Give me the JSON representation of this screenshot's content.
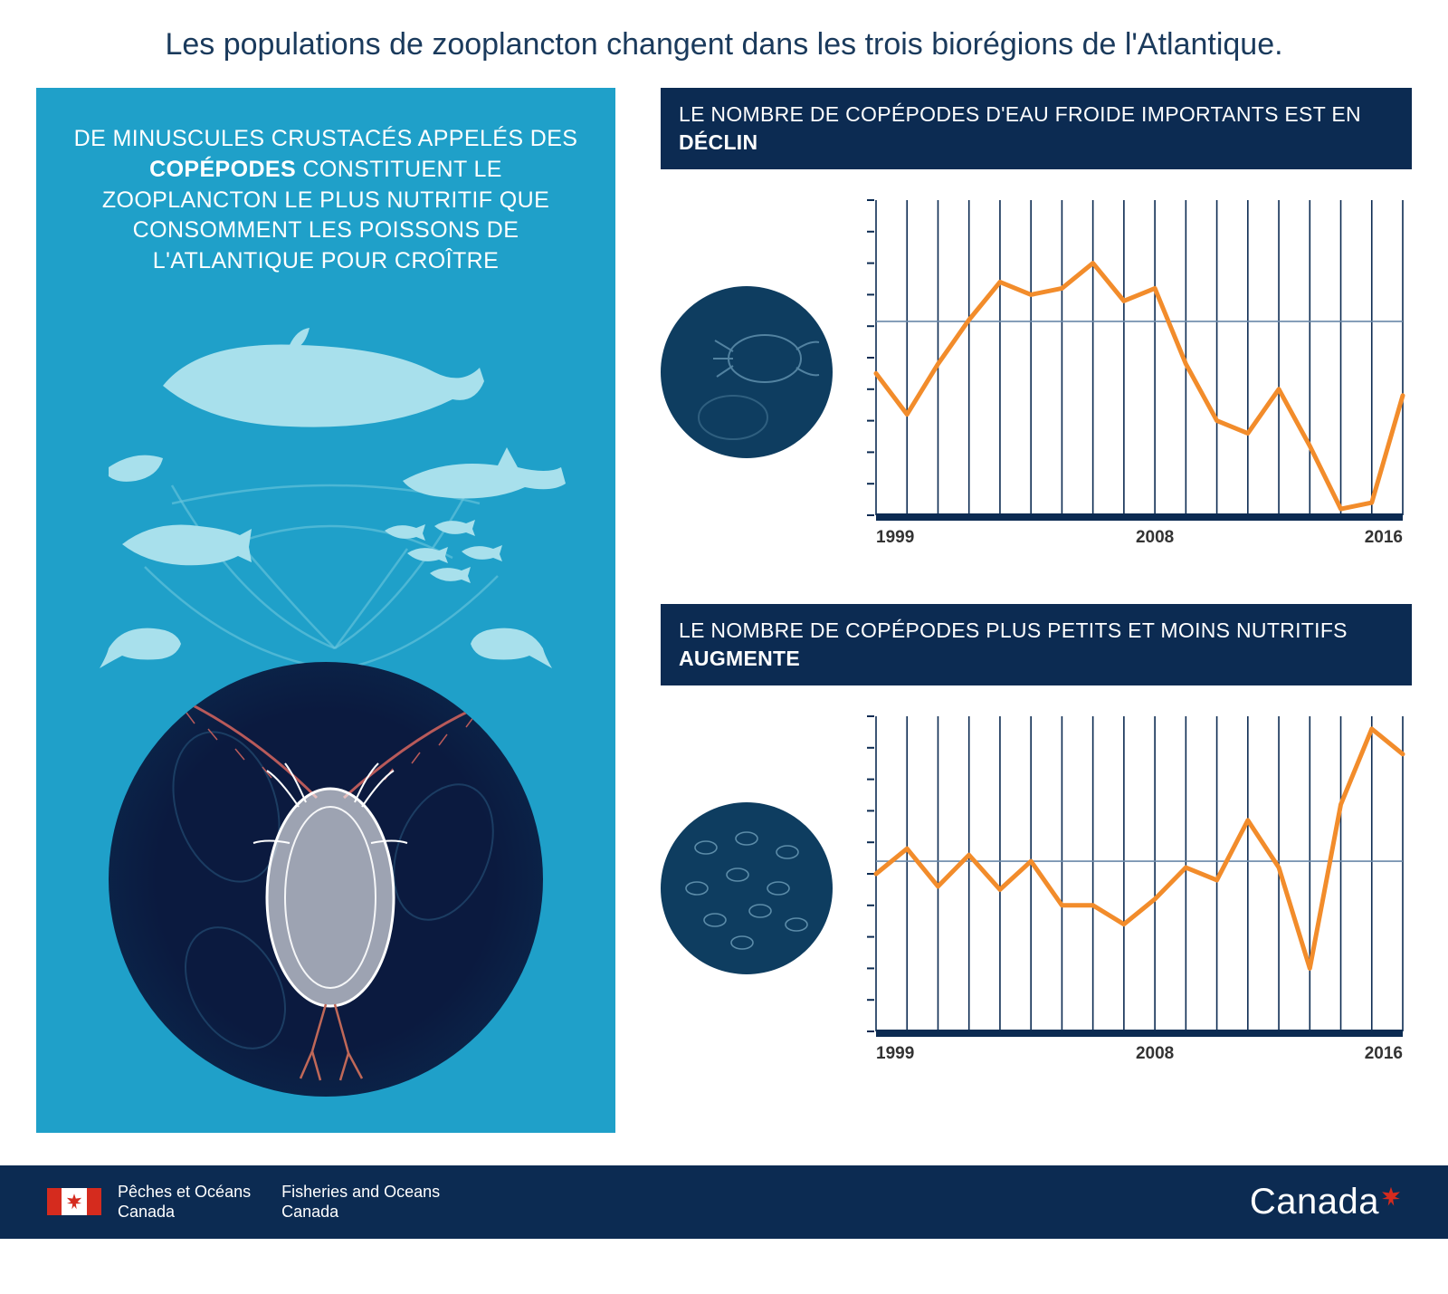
{
  "title": "Les populations de zooplancton changent dans les trois biorégions de l'Atlantique.",
  "left_panel": {
    "intro_pre": "DE MINUSCULES CRUSTACÉS APPELÉS DES ",
    "intro_bold": "COPÉPODES",
    "intro_post": " CONSTITUENT LE ZOOPLANCTON LE PLUS NUTRITIF QUE CONSOMMENT LES POISSONS DE L'ATLANTIQUE POUR CROÎTRE",
    "panel_bg": "#1fa0c9",
    "creature_fill": "#a8e0ec",
    "big_circle_bg": "#0b1a3f"
  },
  "chart1": {
    "header_pre": "LE NOMBRE DE COPÉPODES D'EAU FROIDE IMPORTANTS EST EN ",
    "header_bold": "DÉCLIN",
    "type": "line",
    "years": [
      1999,
      2000,
      2001,
      2002,
      2003,
      2004,
      2005,
      2006,
      2007,
      2008,
      2009,
      2010,
      2011,
      2012,
      2013,
      2014,
      2015,
      2016
    ],
    "values": [
      0.45,
      0.32,
      0.48,
      0.62,
      0.74,
      0.7,
      0.72,
      0.8,
      0.68,
      0.72,
      0.48,
      0.3,
      0.26,
      0.4,
      0.22,
      0.02,
      0.04,
      0.38
    ],
    "ylim": [
      0,
      1
    ],
    "midline": 0.615,
    "x_tick_labels": {
      "0": "1999",
      "9": "2008",
      "17": "2016"
    },
    "line_color": "#f28c2b",
    "line_width": 5,
    "grid_color": "#0c2b52",
    "midline_color": "#6a88a8",
    "axis_color": "#0c2b52",
    "tick_color": "#0c2b52",
    "label_color": "#333333",
    "label_fontsize": 19,
    "background_color": "#ffffff",
    "y_minor_ticks": 10
  },
  "chart2": {
    "header_pre": "LE NOMBRE DE COPÉPODES PLUS PETITS ET MOINS NUTRITIFS ",
    "header_bold": "AUGMENTE",
    "type": "line",
    "years": [
      1999,
      2000,
      2001,
      2002,
      2003,
      2004,
      2005,
      2006,
      2007,
      2008,
      2009,
      2010,
      2011,
      2012,
      2013,
      2014,
      2015,
      2016
    ],
    "values": [
      0.5,
      0.58,
      0.46,
      0.56,
      0.45,
      0.54,
      0.4,
      0.4,
      0.34,
      0.42,
      0.52,
      0.48,
      0.67,
      0.52,
      0.2,
      0.72,
      0.96,
      0.88
    ],
    "ylim": [
      0,
      1
    ],
    "midline": 0.54,
    "x_tick_labels": {
      "0": "1999",
      "9": "2008",
      "17": "2016"
    },
    "line_color": "#f28c2b",
    "line_width": 5,
    "grid_color": "#0c2b52",
    "midline_color": "#6a88a8",
    "axis_color": "#0c2b52",
    "tick_color": "#0c2b52",
    "label_color": "#333333",
    "label_fontsize": 19,
    "background_color": "#ffffff",
    "y_minor_ticks": 10
  },
  "colors": {
    "header_bg": "#0c2b52",
    "header_text": "#ffffff",
    "title_text": "#1a3a5c",
    "footer_bg": "#0c2b52",
    "med_circle_bg": "#0e3d60"
  },
  "footer": {
    "dept_fr_line1": "Pêches et Océans",
    "dept_fr_line2": "Canada",
    "dept_en_line1": "Fisheries and Oceans",
    "dept_en_line2": "Canada",
    "wordmark": "Canada"
  }
}
